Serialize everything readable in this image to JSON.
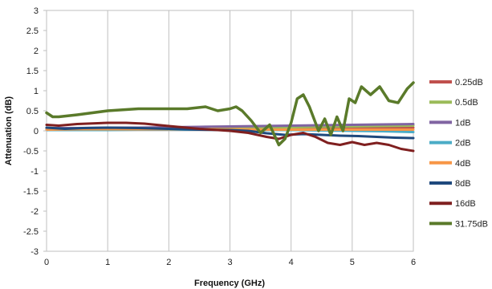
{
  "chart_data": {
    "type": "line",
    "title": "",
    "xlabel": "Frequency (GHz)",
    "ylabel": "Attenuation (dB)",
    "xlim": [
      0,
      6
    ],
    "ylim": [
      -3,
      3
    ],
    "xticks": [
      "0",
      "1",
      "2",
      "3",
      "4",
      "5",
      "6"
    ],
    "yticks": [
      "3",
      "2.5",
      "2",
      "1.5",
      "1",
      "0.5",
      "0",
      "-0.5",
      "-1",
      "-1.5",
      "-2",
      "-2.5",
      "-3"
    ],
    "grid": "vertical",
    "legend_position": "right",
    "series": [
      {
        "name": "0.25dB",
        "color": "#c0504d",
        "x": [
          0,
          0.5,
          1,
          1.5,
          2,
          2.5,
          3,
          3.5,
          4,
          4.5,
          5,
          5.5,
          6
        ],
        "y": [
          0.04,
          0.03,
          0.03,
          0.03,
          0.04,
          0.04,
          0.05,
          0.05,
          0.06,
          0.06,
          0.07,
          0.07,
          0.08
        ]
      },
      {
        "name": "0.5dB",
        "color": "#9bbb59",
        "x": [
          0,
          0.5,
          1,
          1.5,
          2,
          2.5,
          3,
          3.5,
          4,
          4.5,
          5,
          5.5,
          6
        ],
        "y": [
          0.05,
          0.05,
          0.05,
          0.05,
          0.06,
          0.06,
          0.07,
          0.08,
          0.09,
          0.1,
          0.11,
          0.12,
          0.13
        ]
      },
      {
        "name": "1dB",
        "color": "#8064a2",
        "x": [
          0,
          0.5,
          1,
          1.5,
          2,
          2.5,
          3,
          3.5,
          4,
          4.5,
          5,
          5.5,
          6
        ],
        "y": [
          0.07,
          0.07,
          0.08,
          0.08,
          0.09,
          0.1,
          0.11,
          0.12,
          0.13,
          0.14,
          0.15,
          0.16,
          0.17
        ]
      },
      {
        "name": "2dB",
        "color": "#4bacc6",
        "x": [
          0,
          0.5,
          1,
          1.5,
          2,
          2.5,
          3,
          3.5,
          4,
          4.5,
          5,
          5.5,
          6
        ],
        "y": [
          0.02,
          0.02,
          0.02,
          0.03,
          0.03,
          0.03,
          0.03,
          0.02,
          0.02,
          0.01,
          0.0,
          -0.01,
          -0.03
        ]
      },
      {
        "name": "4dB",
        "color": "#f79646",
        "x": [
          0,
          0.5,
          1,
          1.5,
          2,
          2.5,
          3,
          3.5,
          4,
          4.5,
          5,
          5.5,
          6
        ],
        "y": [
          0.03,
          0.04,
          0.04,
          0.04,
          0.04,
          0.04,
          0.04,
          0.03,
          0.03,
          0.03,
          0.03,
          0.03,
          0.03
        ]
      },
      {
        "name": "8dB",
        "color": "#1f497d",
        "x": [
          0,
          0.3,
          0.6,
          1,
          1.5,
          2,
          2.5,
          3,
          3.3,
          3.6,
          3.9,
          4.2,
          4.5,
          4.8,
          5.1,
          5.4,
          5.7,
          6
        ],
        "y": [
          0.08,
          0.05,
          0.07,
          0.08,
          0.07,
          0.05,
          0.03,
          0.02,
          0.0,
          -0.06,
          -0.1,
          -0.08,
          -0.1,
          -0.12,
          -0.13,
          -0.15,
          -0.17,
          -0.18
        ]
      },
      {
        "name": "16dB",
        "color": "#7f1f1f",
        "x": [
          0,
          0.2,
          0.5,
          1,
          1.3,
          1.6,
          2,
          2.5,
          3,
          3.3,
          3.6,
          3.8,
          4.0,
          4.2,
          4.4,
          4.6,
          4.8,
          5.0,
          5.2,
          5.4,
          5.6,
          5.8,
          6
        ],
        "y": [
          0.15,
          0.13,
          0.17,
          0.2,
          0.2,
          0.18,
          0.12,
          0.05,
          0.0,
          -0.05,
          -0.15,
          -0.2,
          -0.1,
          -0.05,
          -0.15,
          -0.3,
          -0.35,
          -0.28,
          -0.35,
          -0.3,
          -0.35,
          -0.45,
          -0.5
        ]
      },
      {
        "name": "31.75dB",
        "color": "#5a7a2a",
        "x": [
          0,
          0.1,
          0.2,
          0.5,
          1,
          1.5,
          2,
          2.3,
          2.6,
          2.8,
          3.0,
          3.1,
          3.2,
          3.35,
          3.5,
          3.65,
          3.8,
          3.9,
          4.0,
          4.1,
          4.2,
          4.3,
          4.45,
          4.55,
          4.65,
          4.75,
          4.85,
          4.95,
          5.05,
          5.15,
          5.3,
          5.45,
          5.6,
          5.75,
          5.9,
          6.0
        ],
        "y": [
          0.45,
          0.35,
          0.35,
          0.4,
          0.5,
          0.55,
          0.55,
          0.55,
          0.6,
          0.5,
          0.55,
          0.6,
          0.5,
          0.25,
          -0.05,
          0.15,
          -0.35,
          -0.2,
          0.2,
          0.8,
          0.9,
          0.6,
          0.0,
          0.3,
          -0.1,
          0.35,
          0.0,
          0.8,
          0.7,
          1.1,
          0.9,
          1.1,
          0.75,
          0.7,
          1.05,
          1.2
        ]
      }
    ]
  }
}
